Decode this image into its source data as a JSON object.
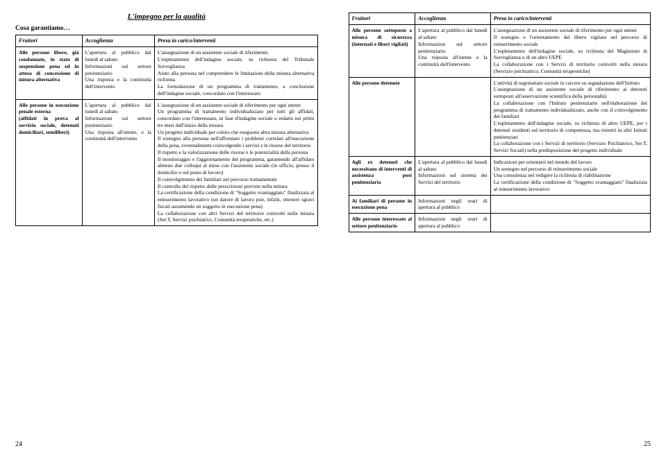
{
  "left": {
    "title": "L'impegno per la qualità",
    "subtitle": "Cosa garantiamo…",
    "headers": [
      "Fruitori",
      "Accoglienza",
      "Presa in carico/interventi"
    ],
    "rows": [
      {
        "c1": "Alle persone libere, già condannate, in stato di sospensione pena ed in attesa di concessione di misura alternativa",
        "c2": "L'apertura al pubblico dal lunedì al sabato\nInformazioni sul settore penitenziario\nUna risposta e la continuità dell'intervento",
        "c3": "L'assegnazione di un assistente sociale di riferimento\nL'espletamento dell'indagine sociale, su richiesta del Tribunale Sorveglianza\nAiuto alla persona nel comprendere le limitazioni della misura alternativa richiesta\nLa formulazione di un programma di trattamento, a conclusione dell'indagine sociale, concordato con l'interessato"
      },
      {
        "c1": "Alle persone in esecuzione penale esterna\n(affidati in prova al servizio sociale, detenuti domiciliari, semiliberi)",
        "c2": "L'apertura al pubblico dal lunedì al sabato\nInformazioni sul settore penitenziario\nUna risposta all'utente, e la continuità dell'intervento",
        "c3": "L'assegnazione di un assistente sociale di riferimento per ogni utente\nUn programma di trattamento individualizzato per tutti gli affidati, concordato con l'interessato, in fase d'indagine sociale o redatto nei primi tre mesi dall'inizio della misura\nUn progetto individuale per coloro che eseguono altra misura alternativa\nIl sostegno alla persona nell'affrontare i problemi correlati all'esecuzione della pena, eventualmente coinvolgendo i servizi e le risorse del territorio\nIl rispetto e la valorizzazione delle risorse e le potenzialità della persona\nIl monitoraggio e l'aggiornamento del programma, garantendo all'affidato almeno due colloqui al mese con l'assistente sociale (in ufficio, presso il domicilio o sul posto di lavoro)\nIl coinvolgimento dei familiari nel percorso trattamentale\nIl controllo del rispetto delle prescrizioni previste nella misura\nLa certificazione della condizione di \"Soggetto svantaggiato\" finalizzata al reinserimento lavorativo (un datore di lavoro può, infatti, ottenere sgravi fiscali assumendo un soggetto in esecuzione pena)\nLa collaborazione con altri Servizi del territorio coinvolti nella misura (Ser.T, Servizi psichiatrici, Comunità terapeutiche, etc.)"
      }
    ],
    "pageNum": "24"
  },
  "right": {
    "headers": [
      "Fruitori",
      "Accoglienza",
      "Presa in carico/interventi"
    ],
    "rows": [
      {
        "c1": "Alle persone sottoposte a misura di sicurezza (internati e liberi vigilati)",
        "c2": "L'apertura al pubblico dal lunedì al sabato\nInformazioni sul settore penitenziario\nUna risposta all'utente e la continuità dell'intervento",
        "c3": "L'assegnazione di un assistente sociale di riferimento per ogni utente\nIl sostegno e l'orientamento del libero vigilato nel percorso di reinserimento sociale\nL'espletamento dell'indagine sociale, su richiesta del Magistrato di Sorveglianza o di un altro UEPE\nLa collaborazione con i Servizi di territorio coinvolti nella misura (Servizio psichiatrico, Comunità terapeutiche)"
      },
      {
        "c1": "Alle persone detenute",
        "c2": "",
        "c3": "L'attività di segretariato sociale in carcere su segnalazione dell'Istituto\nL'assegnazione di un assistente sociale di riferimento ai detenuti sottoposti all'osservazione scientifica della personalità\nLa collaborazione con l'Istituto penitenziario nell'elaborazione del programma di trattamento individualizzato, anche con il coinvolgimento dei familiari\nL'espletamento dell'indagine sociale, su richiesta di altro UEPE, per i detenuti residenti sul territorio di competenza, ma ristretti in altri Istituti penitenziari\nLa collaborazione con i Servizi di territorio (Servizio Psichiatrico, Ser.T, Servizi Sociali) nella predisposizione del progetto individuale"
      },
      {
        "c1": "Agli ex detenuti che necessitano di interventi di assistenza post penitenziaria",
        "c2": "L'apertura al pubblico dal lunedì al sabato\nInformazioni sul sistema dei Servizi del territorio",
        "c3": "Indicazioni per orientarsi nel mondo del lavoro\nUn sostegno nel percorso di reinserimento sociale\nUna consulenza nel redigere la richiesta di riabilitazione\nLa certificazione della condizione di \"Soggetto svantaggiato\" finalizzata al reinserimento lavorativo"
      },
      {
        "c1": "Ai familiari di persone in esecuzione pena",
        "c2": "Informazioni negli orari di apertura al pubblico",
        "c3": ""
      },
      {
        "c1": "Alle persone interessate al settore penitenziario",
        "c2": "Informazioni negli orari di apertura al pubblico",
        "c3": ""
      }
    ],
    "pageNum": "25"
  }
}
